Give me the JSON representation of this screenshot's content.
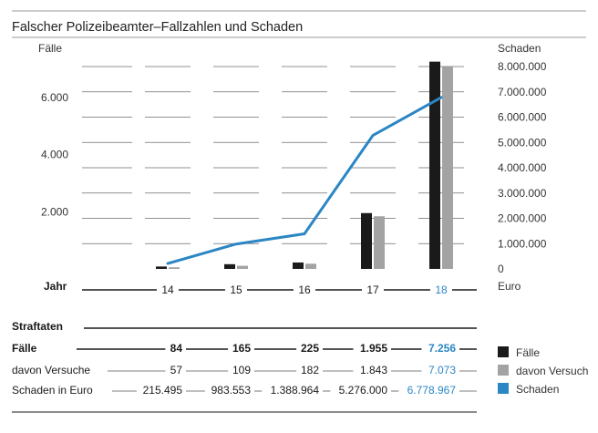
{
  "chart_data": {
    "title": "Falscher Polizeibeamter–Fallzahlen und Schaden",
    "type": "bar+line",
    "left_axis": {
      "label": "Fälle",
      "ticks": [
        "2.000",
        "4.000",
        "6.000"
      ],
      "tick_values": [
        2000,
        4000,
        6000
      ],
      "ylim": [
        0,
        7500
      ]
    },
    "right_axis": {
      "label": "Schaden",
      "unit_label": "Euro",
      "ticks": [
        "0",
        "1.000.000",
        "2.000.000",
        "3.000.000",
        "4.000.000",
        "5.000.000",
        "6.000.000",
        "7.000.000",
        "8.000.000"
      ],
      "tick_values": [
        0,
        1000000,
        2000000,
        3000000,
        4000000,
        5000000,
        6000000,
        7000000,
        8000000
      ],
      "ylim": [
        0,
        8000000
      ]
    },
    "x_label": "Jahr",
    "categories": [
      "14",
      "15",
      "16",
      "17",
      "18"
    ],
    "highlight_category": "18",
    "series": [
      {
        "name": "Fälle",
        "kind": "bar",
        "color": "#1a1a1a",
        "values": [
          84,
          165,
          225,
          1955,
          7256
        ]
      },
      {
        "name": "davon Versuch",
        "kind": "bar",
        "color": "#a3a3a3",
        "values": [
          57,
          109,
          182,
          1843,
          7073
        ]
      },
      {
        "name": "Schaden",
        "kind": "line",
        "axis": "right",
        "color": "#2b86c4",
        "values": [
          215495,
          983553,
          1388964,
          5276000,
          6778967
        ]
      }
    ],
    "table": {
      "title": "Straftaten",
      "rows": [
        {
          "label": "Fälle",
          "bold": true,
          "values": [
            "84",
            "165",
            "225",
            "1.955",
            "7.256"
          ]
        },
        {
          "label": "davon Versuche",
          "bold": false,
          "values": [
            "57",
            "109",
            "182",
            "1.843",
            "7.073"
          ]
        },
        {
          "label": "Schaden in Euro",
          "bold": false,
          "values": [
            "215.495",
            "983.553",
            "1.388.964",
            "5.276.000",
            "6.778.967"
          ]
        }
      ]
    },
    "legend": {
      "placement": "bottom-right",
      "items": [
        {
          "label": "Fälle",
          "color": "#1a1a1a"
        },
        {
          "label": "davon Versuch",
          "color": "#a3a3a3"
        },
        {
          "label": "Schaden",
          "color": "#2b86c4"
        }
      ]
    }
  }
}
